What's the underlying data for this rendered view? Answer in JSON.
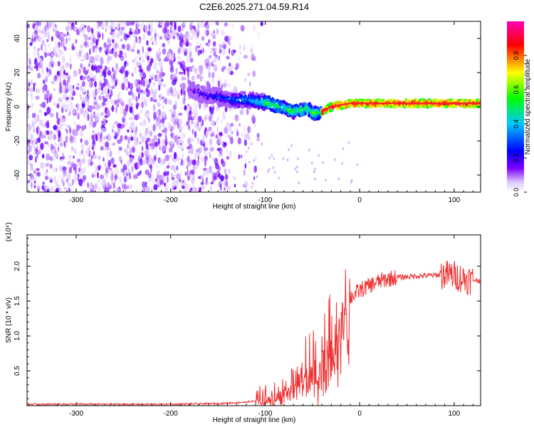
{
  "figure_title": "C2E6.2025.271.04.59.R14",
  "chart_data": [
    {
      "type": "heatmap",
      "title": "C2E6.2025.271.04.59.R14",
      "xlabel": "Height of straight line (km)",
      "ylabel": "Frequency (Hz)",
      "xlim": [
        -352,
        128
      ],
      "ylim": [
        -50,
        50
      ],
      "xticks": [
        -300,
        -200,
        -100,
        0,
        100
      ],
      "yticks": [
        -40,
        -20,
        0,
        20,
        40
      ],
      "xtick_labels": [
        "-300",
        "-200",
        "-100",
        "0",
        "100"
      ],
      "ytick_labels": [
        "-40",
        "-20",
        "0",
        "20",
        "40"
      ],
      "colorbar": {
        "label": "Normalized spectral amplitude",
        "range": [
          0,
          1
        ],
        "ticks": [
          0.0,
          0.2,
          0.4,
          0.6,
          0.8
        ],
        "tick_labels": [
          "0.0",
          "0.2",
          "0.4",
          "0.6",
          "0.8"
        ],
        "colormap": [
          "#ffffff",
          "#6600ff",
          "#0000ff",
          "#00ffff",
          "#00ff00",
          "#ffff00",
          "#ff0000",
          "#ff00ff"
        ]
      },
      "signal_trace": {
        "x": [
          -180,
          -165,
          -150,
          -135,
          -120,
          -105,
          -95,
          -85,
          -78,
          -70,
          -62,
          -55,
          -48,
          -40,
          -30,
          -20,
          -10,
          0,
          20,
          50,
          80,
          110,
          128
        ],
        "y": [
          10,
          7,
          6,
          4,
          4,
          3,
          2,
          0,
          -1,
          -3,
          -2,
          -1,
          -4,
          -3,
          0,
          1,
          2,
          2,
          2,
          2,
          2,
          2,
          2
        ]
      },
      "noise_region_x": [
        -352,
        -120
      ]
    },
    {
      "type": "line",
      "xlabel": "Height of straight line (km)",
      "ylabel": "SNR (10 * v/v)",
      "multiplier": "(x10⁴)",
      "xlim": [
        -352,
        128
      ],
      "ylim": [
        0,
        2.45
      ],
      "xticks": [
        -300,
        -200,
        -100,
        0,
        100
      ],
      "yticks": [
        0.5,
        1.0,
        1.5,
        2.0
      ],
      "xtick_labels": [
        "-300",
        "-200",
        "-100",
        "0",
        "100"
      ],
      "ytick_labels": [
        "0.5",
        "1.0",
        "1.5",
        "2.0"
      ],
      "color": "#ee3333",
      "series": [
        {
          "name": "SNR",
          "x": [
            -352,
            -300,
            -250,
            -200,
            -150,
            -120,
            -105,
            -95,
            -85,
            -75,
            -65,
            -55,
            -45,
            -35,
            -25,
            -18,
            -10,
            0,
            10,
            20,
            30,
            40,
            60,
            80,
            90,
            100,
            110,
            120,
            128
          ],
          "y": [
            0.02,
            0.02,
            0.02,
            0.02,
            0.03,
            0.05,
            0.08,
            0.12,
            0.2,
            0.3,
            0.38,
            0.5,
            0.62,
            0.85,
            1.1,
            1.35,
            1.55,
            1.65,
            1.72,
            1.78,
            1.82,
            1.84,
            1.86,
            1.87,
            1.88,
            1.87,
            1.82,
            1.8,
            1.8
          ]
        }
      ]
    }
  ]
}
